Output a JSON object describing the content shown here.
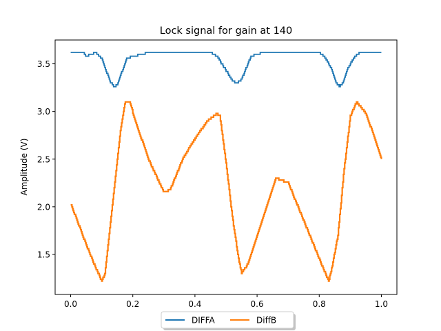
{
  "chart_data": {
    "type": "line",
    "title": "Lock signal for gain at 140",
    "xlabel": "",
    "ylabel": "Amplitude (V)",
    "xlim": [
      -0.05,
      1.05
    ],
    "ylim": [
      1.08,
      3.75
    ],
    "xticks": [
      0.0,
      0.2,
      0.4,
      0.6,
      0.8,
      1.0
    ],
    "xtick_labels": [
      "0.0",
      "0.2",
      "0.4",
      "0.6",
      "0.8",
      "1.0"
    ],
    "yticks": [
      1.5,
      2.0,
      2.5,
      3.0,
      3.5
    ],
    "ytick_labels": [
      "1.5",
      "2.0",
      "2.5",
      "3.0",
      "3.5"
    ],
    "grid": false,
    "legend_position": "bottom-center, below axes",
    "series": [
      {
        "name": "DIFFA",
        "color": "#1f77b4",
        "x": [
          0.0,
          0.04,
          0.05,
          0.08,
          0.1,
          0.115,
          0.125,
          0.14,
          0.15,
          0.165,
          0.18,
          0.25,
          0.35,
          0.45,
          0.47,
          0.49,
          0.51,
          0.52,
          0.535,
          0.55,
          0.565,
          0.58,
          0.62,
          0.7,
          0.8,
          0.82,
          0.84,
          0.855,
          0.865,
          0.875,
          0.89,
          0.91,
          0.93,
          1.0
        ],
        "y": [
          3.62,
          3.62,
          3.58,
          3.62,
          3.55,
          3.42,
          3.32,
          3.26,
          3.28,
          3.42,
          3.56,
          3.62,
          3.62,
          3.62,
          3.58,
          3.48,
          3.38,
          3.32,
          3.3,
          3.34,
          3.46,
          3.58,
          3.62,
          3.62,
          3.62,
          3.56,
          3.44,
          3.3,
          3.26,
          3.3,
          3.44,
          3.56,
          3.62,
          3.62
        ]
      },
      {
        "name": "DiffB",
        "color": "#ff7f0e",
        "x": [
          0.0,
          0.02,
          0.05,
          0.08,
          0.1,
          0.11,
          0.12,
          0.14,
          0.16,
          0.175,
          0.19,
          0.21,
          0.25,
          0.3,
          0.32,
          0.36,
          0.4,
          0.44,
          0.47,
          0.48,
          0.5,
          0.52,
          0.54,
          0.55,
          0.57,
          0.6,
          0.64,
          0.66,
          0.7,
          0.75,
          0.8,
          0.83,
          0.84,
          0.86,
          0.88,
          0.9,
          0.92,
          0.95,
          0.98,
          1.0
        ],
        "y": [
          2.03,
          1.86,
          1.6,
          1.36,
          1.22,
          1.3,
          1.6,
          2.2,
          2.8,
          3.1,
          3.1,
          2.88,
          2.5,
          2.15,
          2.18,
          2.5,
          2.72,
          2.9,
          2.98,
          2.95,
          2.45,
          1.9,
          1.45,
          1.3,
          1.4,
          1.7,
          2.1,
          2.3,
          2.25,
          1.85,
          1.45,
          1.22,
          1.35,
          1.7,
          2.4,
          2.95,
          3.1,
          2.98,
          2.7,
          2.5
        ]
      }
    ]
  }
}
